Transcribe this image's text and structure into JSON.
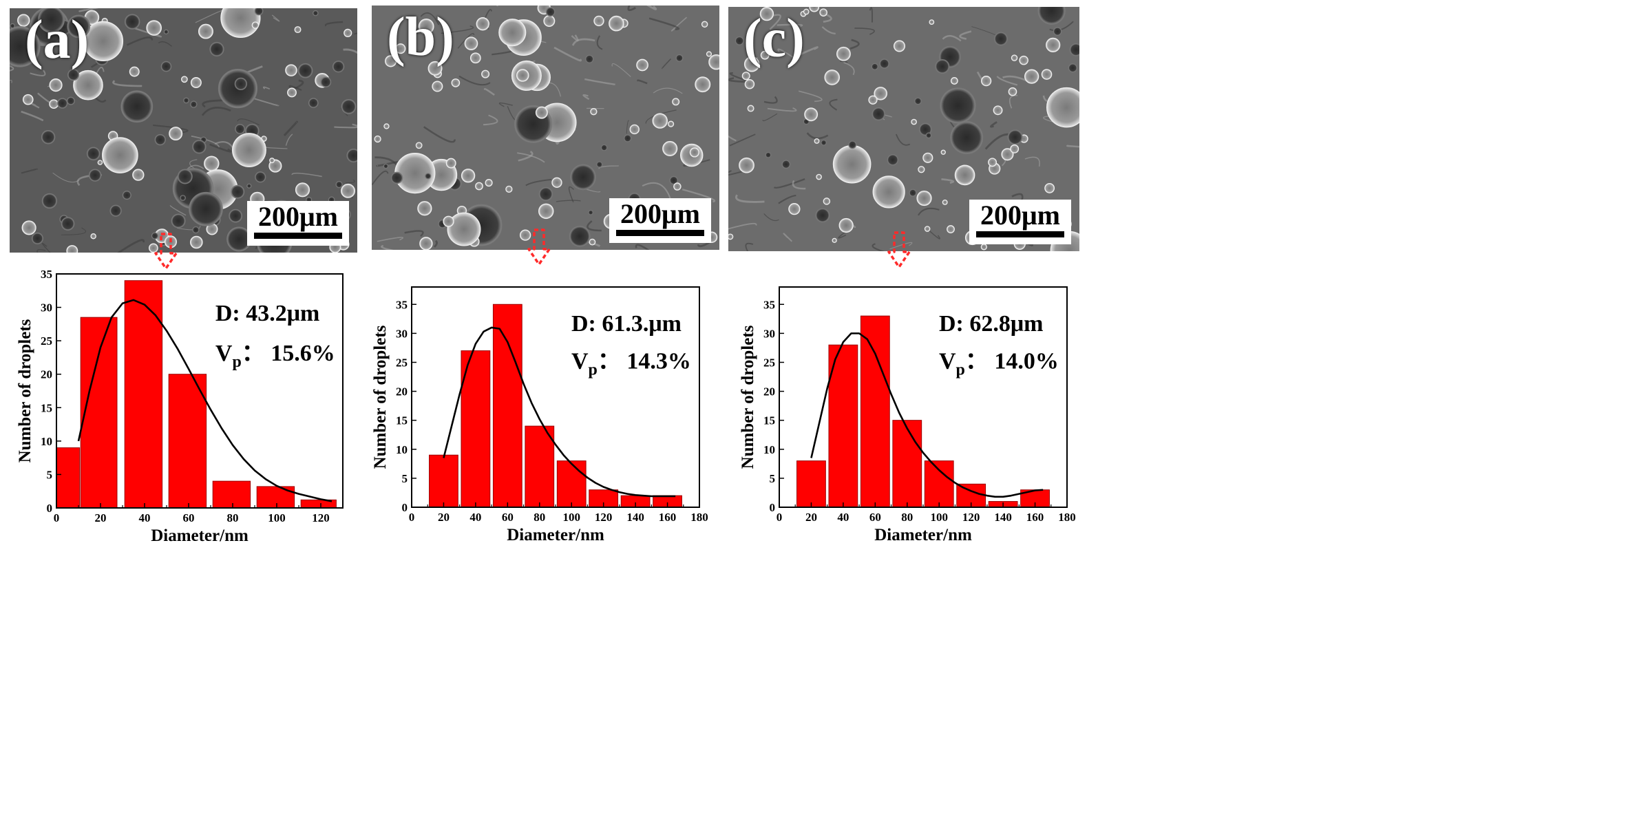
{
  "panels": [
    {
      "label": "(a)",
      "scalebar": "200μm"
    },
    {
      "label": "(b)",
      "scalebar": "200μm"
    },
    {
      "label": "(c)",
      "scalebar": "200μm"
    }
  ],
  "colors": {
    "bar": "#ff0000",
    "bar_edge": "#9a0000",
    "fit": "#000000",
    "arrow": "#ff2a2a"
  },
  "chart_data": [
    {
      "type": "bar",
      "xlabel": "Diameter/nm",
      "ylabel": "Number of droplets",
      "xlim": [
        0,
        130
      ],
      "ylim": [
        0,
        35
      ],
      "xticks": [
        0,
        20,
        40,
        60,
        80,
        100,
        120
      ],
      "yticks": [
        0,
        5,
        10,
        15,
        20,
        25,
        30,
        35
      ],
      "bars": [
        {
          "x0": 0,
          "x1": 10.5,
          "value": 9
        },
        {
          "x0": 11,
          "x1": 27.5,
          "value": 28.5
        },
        {
          "x0": 31,
          "x1": 48,
          "value": 34
        },
        {
          "x0": 51,
          "x1": 68,
          "value": 20
        },
        {
          "x0": 71,
          "x1": 88,
          "value": 4
        },
        {
          "x0": 91,
          "x1": 108,
          "value": 3.2
        },
        {
          "x0": 111,
          "x1": 127,
          "value": 1.2
        }
      ],
      "fit_curve": {
        "x": [
          10,
          15,
          20,
          25,
          30,
          35,
          40,
          45,
          50,
          55,
          60,
          65,
          70,
          75,
          80,
          85,
          90,
          95,
          100,
          105,
          110,
          115,
          120,
          125
        ],
        "y": [
          10,
          17.5,
          24,
          28.5,
          30.6,
          31.1,
          30.4,
          28.8,
          26.5,
          23.8,
          20.8,
          17.7,
          14.7,
          11.9,
          9.4,
          7.3,
          5.6,
          4.3,
          3.3,
          2.6,
          2.1,
          1.7,
          1.3,
          1.0
        ]
      },
      "annotations": {
        "d_text": "D: 43.2μm",
        "vp_main": "V",
        "vp_sub": "p",
        "vp_value": "：  15.6%"
      }
    },
    {
      "type": "bar",
      "xlabel": "Diameter/nm",
      "ylabel": "Number of droplets",
      "xlim": [
        0,
        180
      ],
      "ylim": [
        0,
        38
      ],
      "xticks": [
        0,
        20,
        40,
        60,
        80,
        100,
        120,
        140,
        160,
        180
      ],
      "yticks": [
        0,
        5,
        10,
        15,
        20,
        25,
        30,
        35
      ],
      "bars": [
        {
          "x0": 11,
          "x1": 29,
          "value": 9
        },
        {
          "x0": 31,
          "x1": 49,
          "value": 27
        },
        {
          "x0": 51,
          "x1": 69,
          "value": 35
        },
        {
          "x0": 71,
          "x1": 89,
          "value": 14
        },
        {
          "x0": 91,
          "x1": 109,
          "value": 8
        },
        {
          "x0": 111,
          "x1": 129,
          "value": 3
        },
        {
          "x0": 131,
          "x1": 149,
          "value": 2
        },
        {
          "x0": 151,
          "x1": 169,
          "value": 2
        }
      ],
      "fit_curve": {
        "x": [
          20,
          25,
          30,
          35,
          40,
          45,
          50,
          55,
          60,
          65,
          70,
          75,
          80,
          85,
          90,
          95,
          100,
          105,
          110,
          115,
          120,
          125,
          130,
          135,
          140,
          145,
          150,
          155,
          160,
          165
        ],
        "y": [
          8.5,
          14,
          19.5,
          24.5,
          28.2,
          30.3,
          31,
          30.8,
          28.5,
          25,
          21.3,
          18,
          15.2,
          12.8,
          10.8,
          9.0,
          7.5,
          6.2,
          5.1,
          4.2,
          3.5,
          3.0,
          2.6,
          2.3,
          2.1,
          2.0,
          1.9,
          1.9,
          1.9,
          1.9
        ]
      },
      "annotations": {
        "d_text": "D: 61.3.μm",
        "vp_main": "V",
        "vp_sub": "p",
        "vp_value": "：  14.3%"
      }
    },
    {
      "type": "bar",
      "xlabel": "Diameter/nm",
      "ylabel": "Number of droplets",
      "xlim": [
        0,
        180
      ],
      "ylim": [
        0,
        38
      ],
      "xticks": [
        0,
        20,
        40,
        60,
        80,
        100,
        120,
        140,
        160,
        180
      ],
      "yticks": [
        0,
        5,
        10,
        15,
        20,
        25,
        30,
        35
      ],
      "bars": [
        {
          "x0": 11,
          "x1": 29,
          "value": 8
        },
        {
          "x0": 31,
          "x1": 49,
          "value": 28
        },
        {
          "x0": 51,
          "x1": 69,
          "value": 33
        },
        {
          "x0": 71,
          "x1": 89,
          "value": 15
        },
        {
          "x0": 91,
          "x1": 109,
          "value": 8
        },
        {
          "x0": 111,
          "x1": 129,
          "value": 4
        },
        {
          "x0": 131,
          "x1": 149,
          "value": 1
        },
        {
          "x0": 151,
          "x1": 169,
          "value": 3
        }
      ],
      "fit_curve": {
        "x": [
          20,
          25,
          30,
          35,
          40,
          45,
          50,
          55,
          60,
          65,
          70,
          75,
          80,
          85,
          90,
          95,
          100,
          105,
          110,
          115,
          120,
          125,
          130,
          135,
          140,
          145,
          150,
          155,
          160,
          165
        ],
        "y": [
          8.5,
          14.5,
          20.5,
          25.5,
          28.5,
          30,
          30,
          29,
          26.5,
          23,
          19.5,
          16.3,
          13.6,
          11.3,
          9.4,
          7.8,
          6.4,
          5.2,
          4.2,
          3.4,
          2.8,
          2.3,
          2.0,
          1.8,
          1.8,
          2.0,
          2.3,
          2.6,
          2.9,
          3.0
        ]
      },
      "annotations": {
        "d_text": "D: 62.8μm",
        "vp_main": "V",
        "vp_sub": "p",
        "vp_value": "：  14.0%"
      }
    }
  ]
}
